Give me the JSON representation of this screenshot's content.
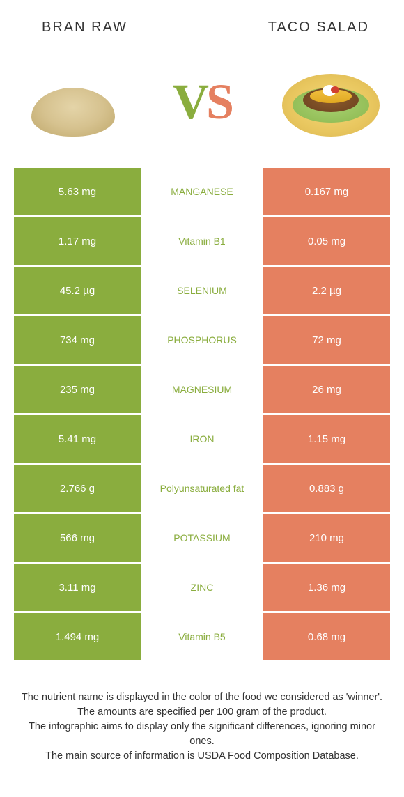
{
  "header": {
    "left_title": "BRAN RAW",
    "right_title": "TACO SALAD"
  },
  "vs": {
    "v_text": "V",
    "s_text": "S",
    "v_color": "#8aad3e",
    "s_color": "#e58060"
  },
  "colors": {
    "left_bg": "#8aad3e",
    "right_bg": "#e58060",
    "mid_bg": "#ffffff",
    "mid_text_left": "#8aad3e",
    "mid_text_right": "#e58060",
    "cell_text": "#ffffff"
  },
  "rows": [
    {
      "left": "5.63 mg",
      "mid": "MANGANESE",
      "right": "0.167 mg",
      "winner": "left"
    },
    {
      "left": "1.17 mg",
      "mid": "Vitamin B1",
      "right": "0.05 mg",
      "winner": "left"
    },
    {
      "left": "45.2 µg",
      "mid": "SELENIUM",
      "right": "2.2 µg",
      "winner": "left"
    },
    {
      "left": "734 mg",
      "mid": "PHOSPHORUS",
      "right": "72 mg",
      "winner": "left"
    },
    {
      "left": "235 mg",
      "mid": "MAGNESIUM",
      "right": "26 mg",
      "winner": "left"
    },
    {
      "left": "5.41 mg",
      "mid": "IRON",
      "right": "1.15 mg",
      "winner": "left"
    },
    {
      "left": "2.766 g",
      "mid": "Polyunsaturated fat",
      "right": "0.883 g",
      "winner": "left"
    },
    {
      "left": "566 mg",
      "mid": "POTASSIUM",
      "right": "210 mg",
      "winner": "left"
    },
    {
      "left": "3.11 mg",
      "mid": "ZINC",
      "right": "1.36 mg",
      "winner": "left"
    },
    {
      "left": "1.494 mg",
      "mid": "Vitamin B5",
      "right": "0.68 mg",
      "winner": "left"
    }
  ],
  "footer": {
    "line1": "The nutrient name is displayed in the color of the food we considered as 'winner'.",
    "line2": "The amounts are specified per 100 gram of the product.",
    "line3": "The infographic aims to display only the significant differences, ignoring minor ones.",
    "line4": "The main source of information is USDA Food Composition Database."
  }
}
